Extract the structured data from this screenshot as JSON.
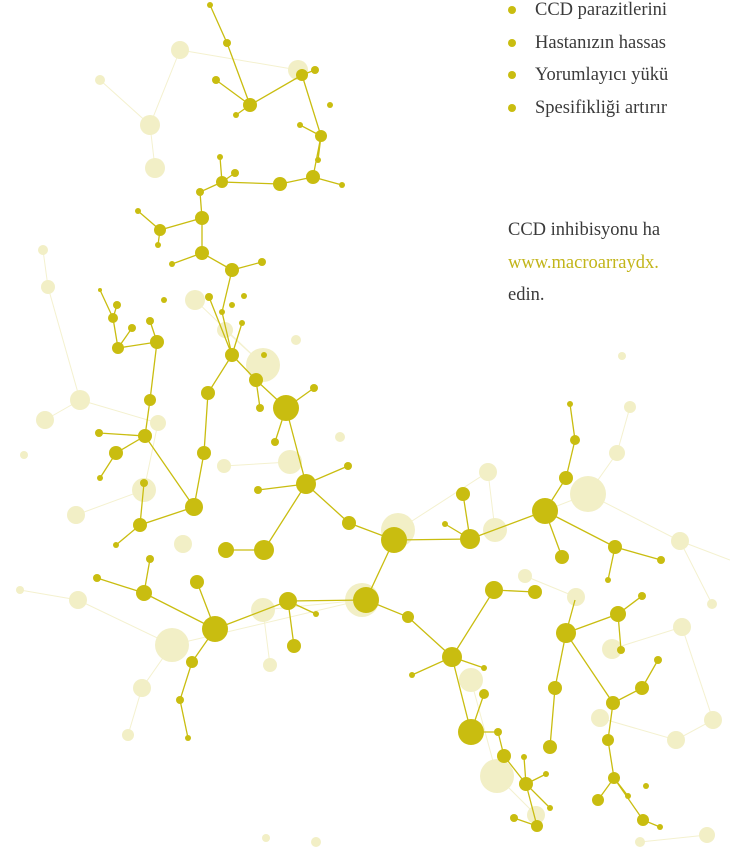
{
  "bullets": [
    "CCD parazitlerini",
    "Hastanızın hassas",
    "Yorumlayıcı yükü",
    "Spesifikliği artırır"
  ],
  "paragraph": {
    "text": "CCD inhibisyonu ha",
    "link": "www.macroarraydx.",
    "end": "edin."
  }
}
